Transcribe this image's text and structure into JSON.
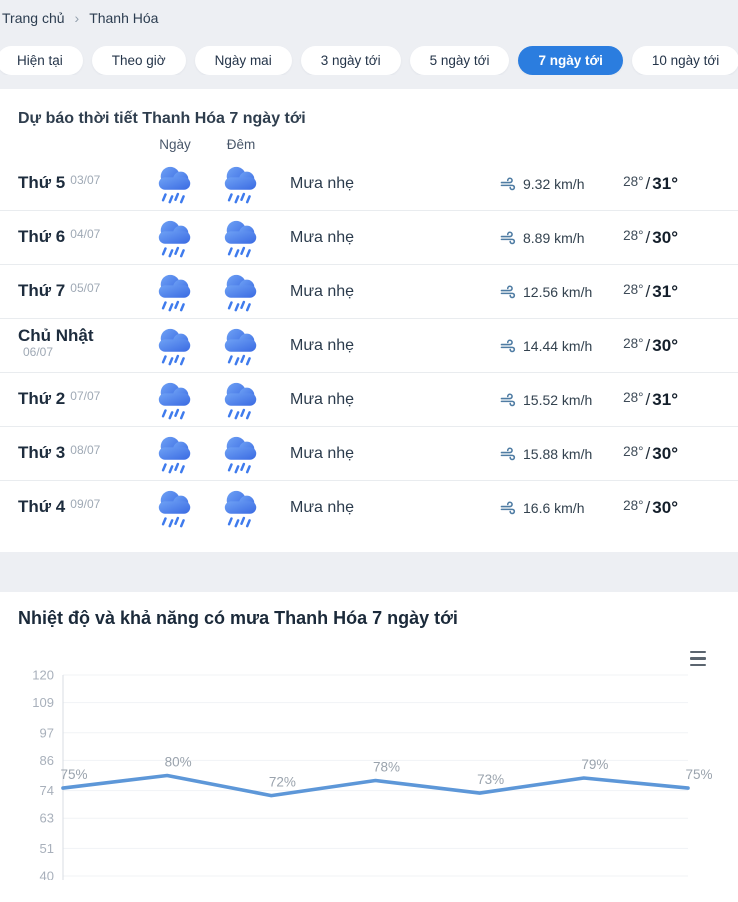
{
  "breadcrumb": {
    "home": "Trang chủ",
    "separator": "›",
    "current": "Thanh Hóa"
  },
  "tabs": [
    {
      "label": "Hiện tại",
      "active": false
    },
    {
      "label": "Theo giờ",
      "active": false
    },
    {
      "label": "Ngày mai",
      "active": false
    },
    {
      "label": "3 ngày tới",
      "active": false
    },
    {
      "label": "5 ngày tới",
      "active": false
    },
    {
      "label": "7 ngày tới",
      "active": true
    },
    {
      "label": "10 ngày tới",
      "active": false
    }
  ],
  "forecast": {
    "title": "Dự báo thời tiết Thanh Hóa 7 ngày tới",
    "col_day": "Ngày",
    "col_night": "Đêm",
    "day_icon": "rain-cloud-icon",
    "night_icon": "rain-cloud-icon",
    "rows": [
      {
        "day": "Thứ 5",
        "date": "03/07",
        "condition": "Mưa nhẹ",
        "wind": "9.32 km/h",
        "temp_low": "28°",
        "temp_sep": "/",
        "temp_high": "31°"
      },
      {
        "day": "Thứ 6",
        "date": "04/07",
        "condition": "Mưa nhẹ",
        "wind": "8.89 km/h",
        "temp_low": "28°",
        "temp_sep": "/",
        "temp_high": "30°"
      },
      {
        "day": "Thứ 7",
        "date": "05/07",
        "condition": "Mưa nhẹ",
        "wind": "12.56 km/h",
        "temp_low": "28°",
        "temp_sep": "/",
        "temp_high": "31°"
      },
      {
        "day": "Chủ Nhật",
        "date": "06/07",
        "condition": "Mưa nhẹ",
        "wind": "14.44 km/h",
        "temp_low": "28°",
        "temp_sep": "/",
        "temp_high": "30°"
      },
      {
        "day": "Thứ 2",
        "date": "07/07",
        "condition": "Mưa nhẹ",
        "wind": "15.52 km/h",
        "temp_low": "28°",
        "temp_sep": "/",
        "temp_high": "31°"
      },
      {
        "day": "Thứ 3",
        "date": "08/07",
        "condition": "Mưa nhẹ",
        "wind": "15.88 km/h",
        "temp_low": "28°",
        "temp_sep": "/",
        "temp_high": "30°"
      },
      {
        "day": "Thứ 4",
        "date": "09/07",
        "condition": "Mưa nhẹ",
        "wind": "16.6 km/h",
        "temp_low": "28°",
        "temp_sep": "/",
        "temp_high": "30°"
      }
    ]
  },
  "chart_section": {
    "title": "Nhiệt độ và khả năng có mưa Thanh Hóa 7 ngày tới"
  },
  "chart_data": {
    "type": "line",
    "title": "Nhiệt độ và khả năng có mưa Thanh Hóa 7 ngày tới",
    "series_name": "Khả năng có mưa",
    "values": [
      75,
      80,
      72,
      78,
      73,
      79,
      75
    ],
    "data_label_suffix": "%",
    "ylim": [
      40,
      120
    ],
    "yticks": [
      120,
      109,
      97,
      86,
      74,
      63,
      51,
      40
    ],
    "grid": true,
    "legend": false,
    "colors": {
      "line": "#5d97d8",
      "data_label": "#9aa3ad",
      "axis_label": "#a8b0bb",
      "grid_line": "#f1f3f6",
      "axis_line": "#d8dde3"
    },
    "accent_color": "#2b7ddf"
  }
}
